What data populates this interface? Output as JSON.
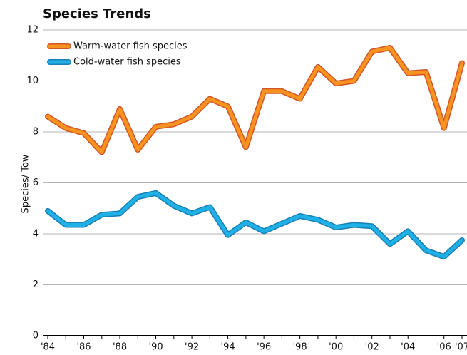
{
  "chart_data": {
    "type": "line",
    "title": "Species Trends",
    "y_label": "Species/ Tow",
    "categories": [
      "'84",
      null,
      "'86",
      null,
      "'88",
      null,
      "'90",
      null,
      "'92",
      null,
      "'94",
      null,
      "'96",
      null,
      "'98",
      null,
      "'00",
      null,
      "'02",
      null,
      "'04",
      null,
      "'06",
      "'07"
    ],
    "series": [
      {
        "name": "Warm-water fish species",
        "color": "#f7931e",
        "values": [
          8.6,
          8.15,
          7.95,
          7.2,
          8.9,
          7.3,
          8.2,
          8.3,
          8.6,
          9.3,
          9.0,
          7.4,
          9.6,
          9.6,
          9.3,
          10.55,
          9.9,
          10.0,
          11.15,
          11.3,
          10.3,
          10.35,
          8.15,
          10.7
        ]
      },
      {
        "name": "Cold-water fish species",
        "color": "#1fb0e6",
        "values": [
          4.9,
          4.35,
          4.35,
          4.75,
          4.8,
          5.45,
          5.6,
          5.1,
          4.8,
          5.05,
          3.95,
          4.45,
          4.1,
          4.4,
          4.7,
          4.55,
          4.25,
          4.35,
          4.3,
          3.6,
          4.1,
          3.35,
          3.1,
          3.75
        ]
      }
    ],
    "ylim": [
      0,
      12
    ],
    "yticks": [
      0,
      2,
      4,
      6,
      8,
      10,
      12
    ],
    "grid": true,
    "legend": "upper left"
  }
}
